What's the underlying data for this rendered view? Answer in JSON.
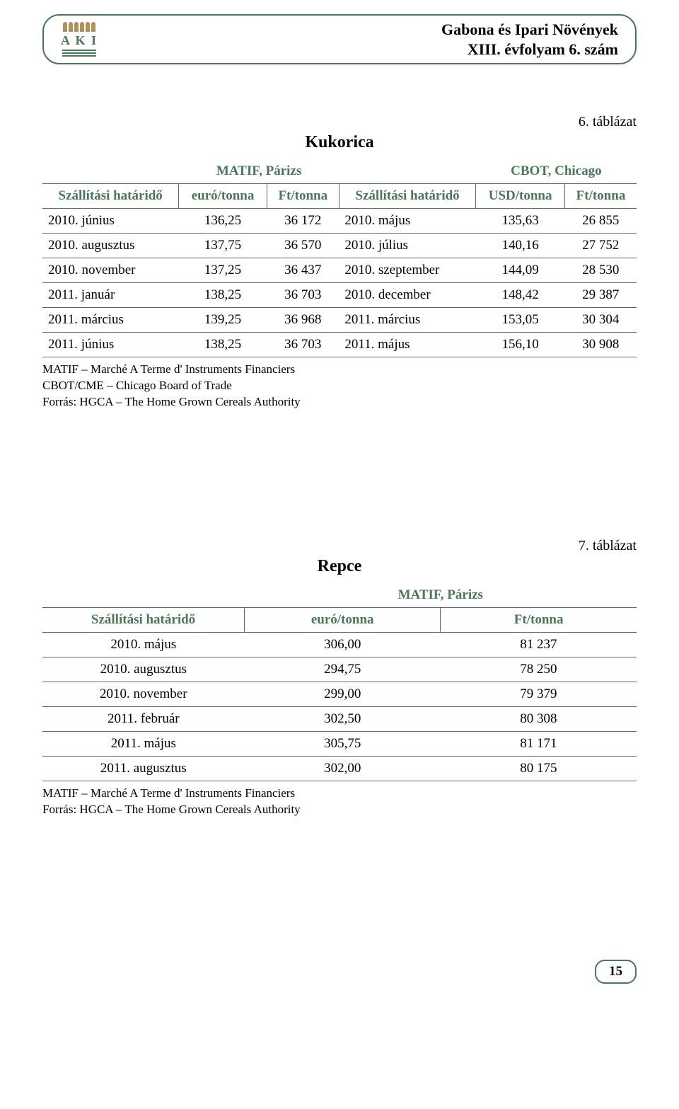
{
  "header": {
    "logo_text": "A K I",
    "title_line1": "Gabona és Ipari Növények",
    "title_line2": "XIII. évfolyam 6. szám"
  },
  "table6": {
    "caption": "6. táblázat",
    "title": "Kukorica",
    "left_group": "MATIF, Párizs",
    "right_group": "CBOT, Chicago",
    "col_delivery": "Szállítási határidő",
    "col_eur": "euró/tonna",
    "col_ft": "Ft/tonna",
    "col_usd": "USD/tonna",
    "rows": [
      {
        "l_date": "2010. június",
        "l_eur": "136,25",
        "l_ft": "36 172",
        "r_date": "2010. május",
        "r_usd": "135,63",
        "r_ft": "26 855"
      },
      {
        "l_date": "2010. augusztus",
        "l_eur": "137,75",
        "l_ft": "36 570",
        "r_date": "2010. július",
        "r_usd": "140,16",
        "r_ft": "27 752"
      },
      {
        "l_date": "2010. november",
        "l_eur": "137,25",
        "l_ft": "36 437",
        "r_date": "2010. szeptember",
        "r_usd": "144,09",
        "r_ft": "28 530"
      },
      {
        "l_date": "2011. január",
        "l_eur": "138,25",
        "l_ft": "36 703",
        "r_date": "2010. december",
        "r_usd": "148,42",
        "r_ft": "29 387"
      },
      {
        "l_date": "2011. március",
        "l_eur": "139,25",
        "l_ft": "36 968",
        "r_date": "2011. március",
        "r_usd": "153,05",
        "r_ft": "30 304"
      },
      {
        "l_date": "2011. június",
        "l_eur": "138,25",
        "l_ft": "36 703",
        "r_date": "2011. május",
        "r_usd": "156,10",
        "r_ft": "30 908"
      }
    ],
    "notes": [
      "MATIF – Marché A Terme d' Instruments Financiers",
      "CBOT/CME – Chicago Board of Trade",
      "Forrás: HGCA – The Home Grown Cereals Authority"
    ]
  },
  "table7": {
    "caption": "7. táblázat",
    "title": "Repce",
    "group": "MATIF, Párizs",
    "col_delivery": "Szállítási határidő",
    "col_eur": "euró/tonna",
    "col_ft": "Ft/tonna",
    "rows": [
      {
        "date": "2010. május",
        "eur": "306,00",
        "ft": "81 237"
      },
      {
        "date": "2010. augusztus",
        "eur": "294,75",
        "ft": "78 250"
      },
      {
        "date": "2010. november",
        "eur": "299,00",
        "ft": "79 379"
      },
      {
        "date": "2011. február",
        "eur": "302,50",
        "ft": "80 308"
      },
      {
        "date": "2011. május",
        "eur": "305,75",
        "ft": "81 171"
      },
      {
        "date": "2011. augusztus",
        "eur": "302,00",
        "ft": "80 175"
      }
    ],
    "notes": [
      "MATIF – Marché A Terme d' Instruments Financiers",
      "Forrás: HGCA – The Home Grown Cereals Authority"
    ]
  },
  "page_number": "15"
}
